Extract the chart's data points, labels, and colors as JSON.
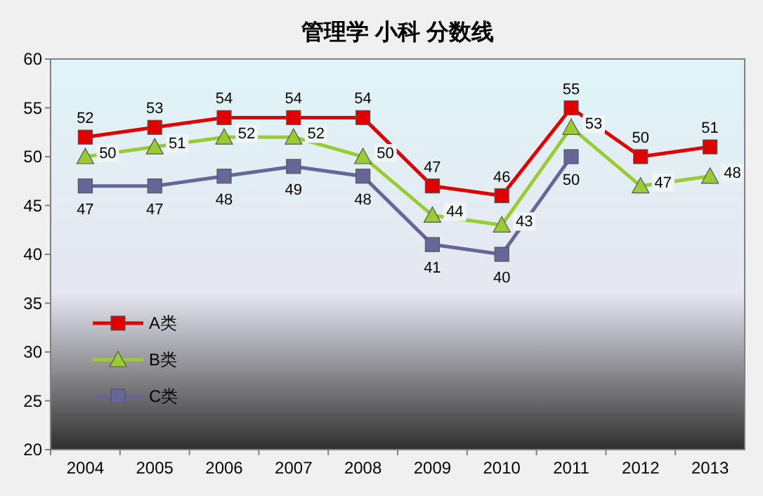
{
  "chart_data": {
    "type": "line",
    "title": "管理学    小科    分数线",
    "categories": [
      "2004",
      "2005",
      "2006",
      "2007",
      "2008",
      "2009",
      "2010",
      "2011",
      "2012",
      "2013"
    ],
    "series": [
      {
        "name": "A类",
        "color": "#e00000",
        "marker": "square",
        "values": [
          52,
          53,
          54,
          54,
          54,
          47,
          46,
          55,
          50,
          51
        ]
      },
      {
        "name": "B类",
        "color": "#99cc33",
        "marker": "triangle",
        "values": [
          50,
          51,
          52,
          52,
          50,
          44,
          43,
          53,
          47,
          48
        ]
      },
      {
        "name": "C类",
        "color": "#666699",
        "marker": "square",
        "values": [
          47,
          47,
          48,
          49,
          48,
          41,
          40,
          50,
          null,
          null
        ]
      }
    ],
    "ylim": [
      20,
      60
    ],
    "yticks": [
      20,
      25,
      30,
      35,
      40,
      45,
      50,
      55,
      60
    ],
    "data_labels": true,
    "legend": "left"
  }
}
